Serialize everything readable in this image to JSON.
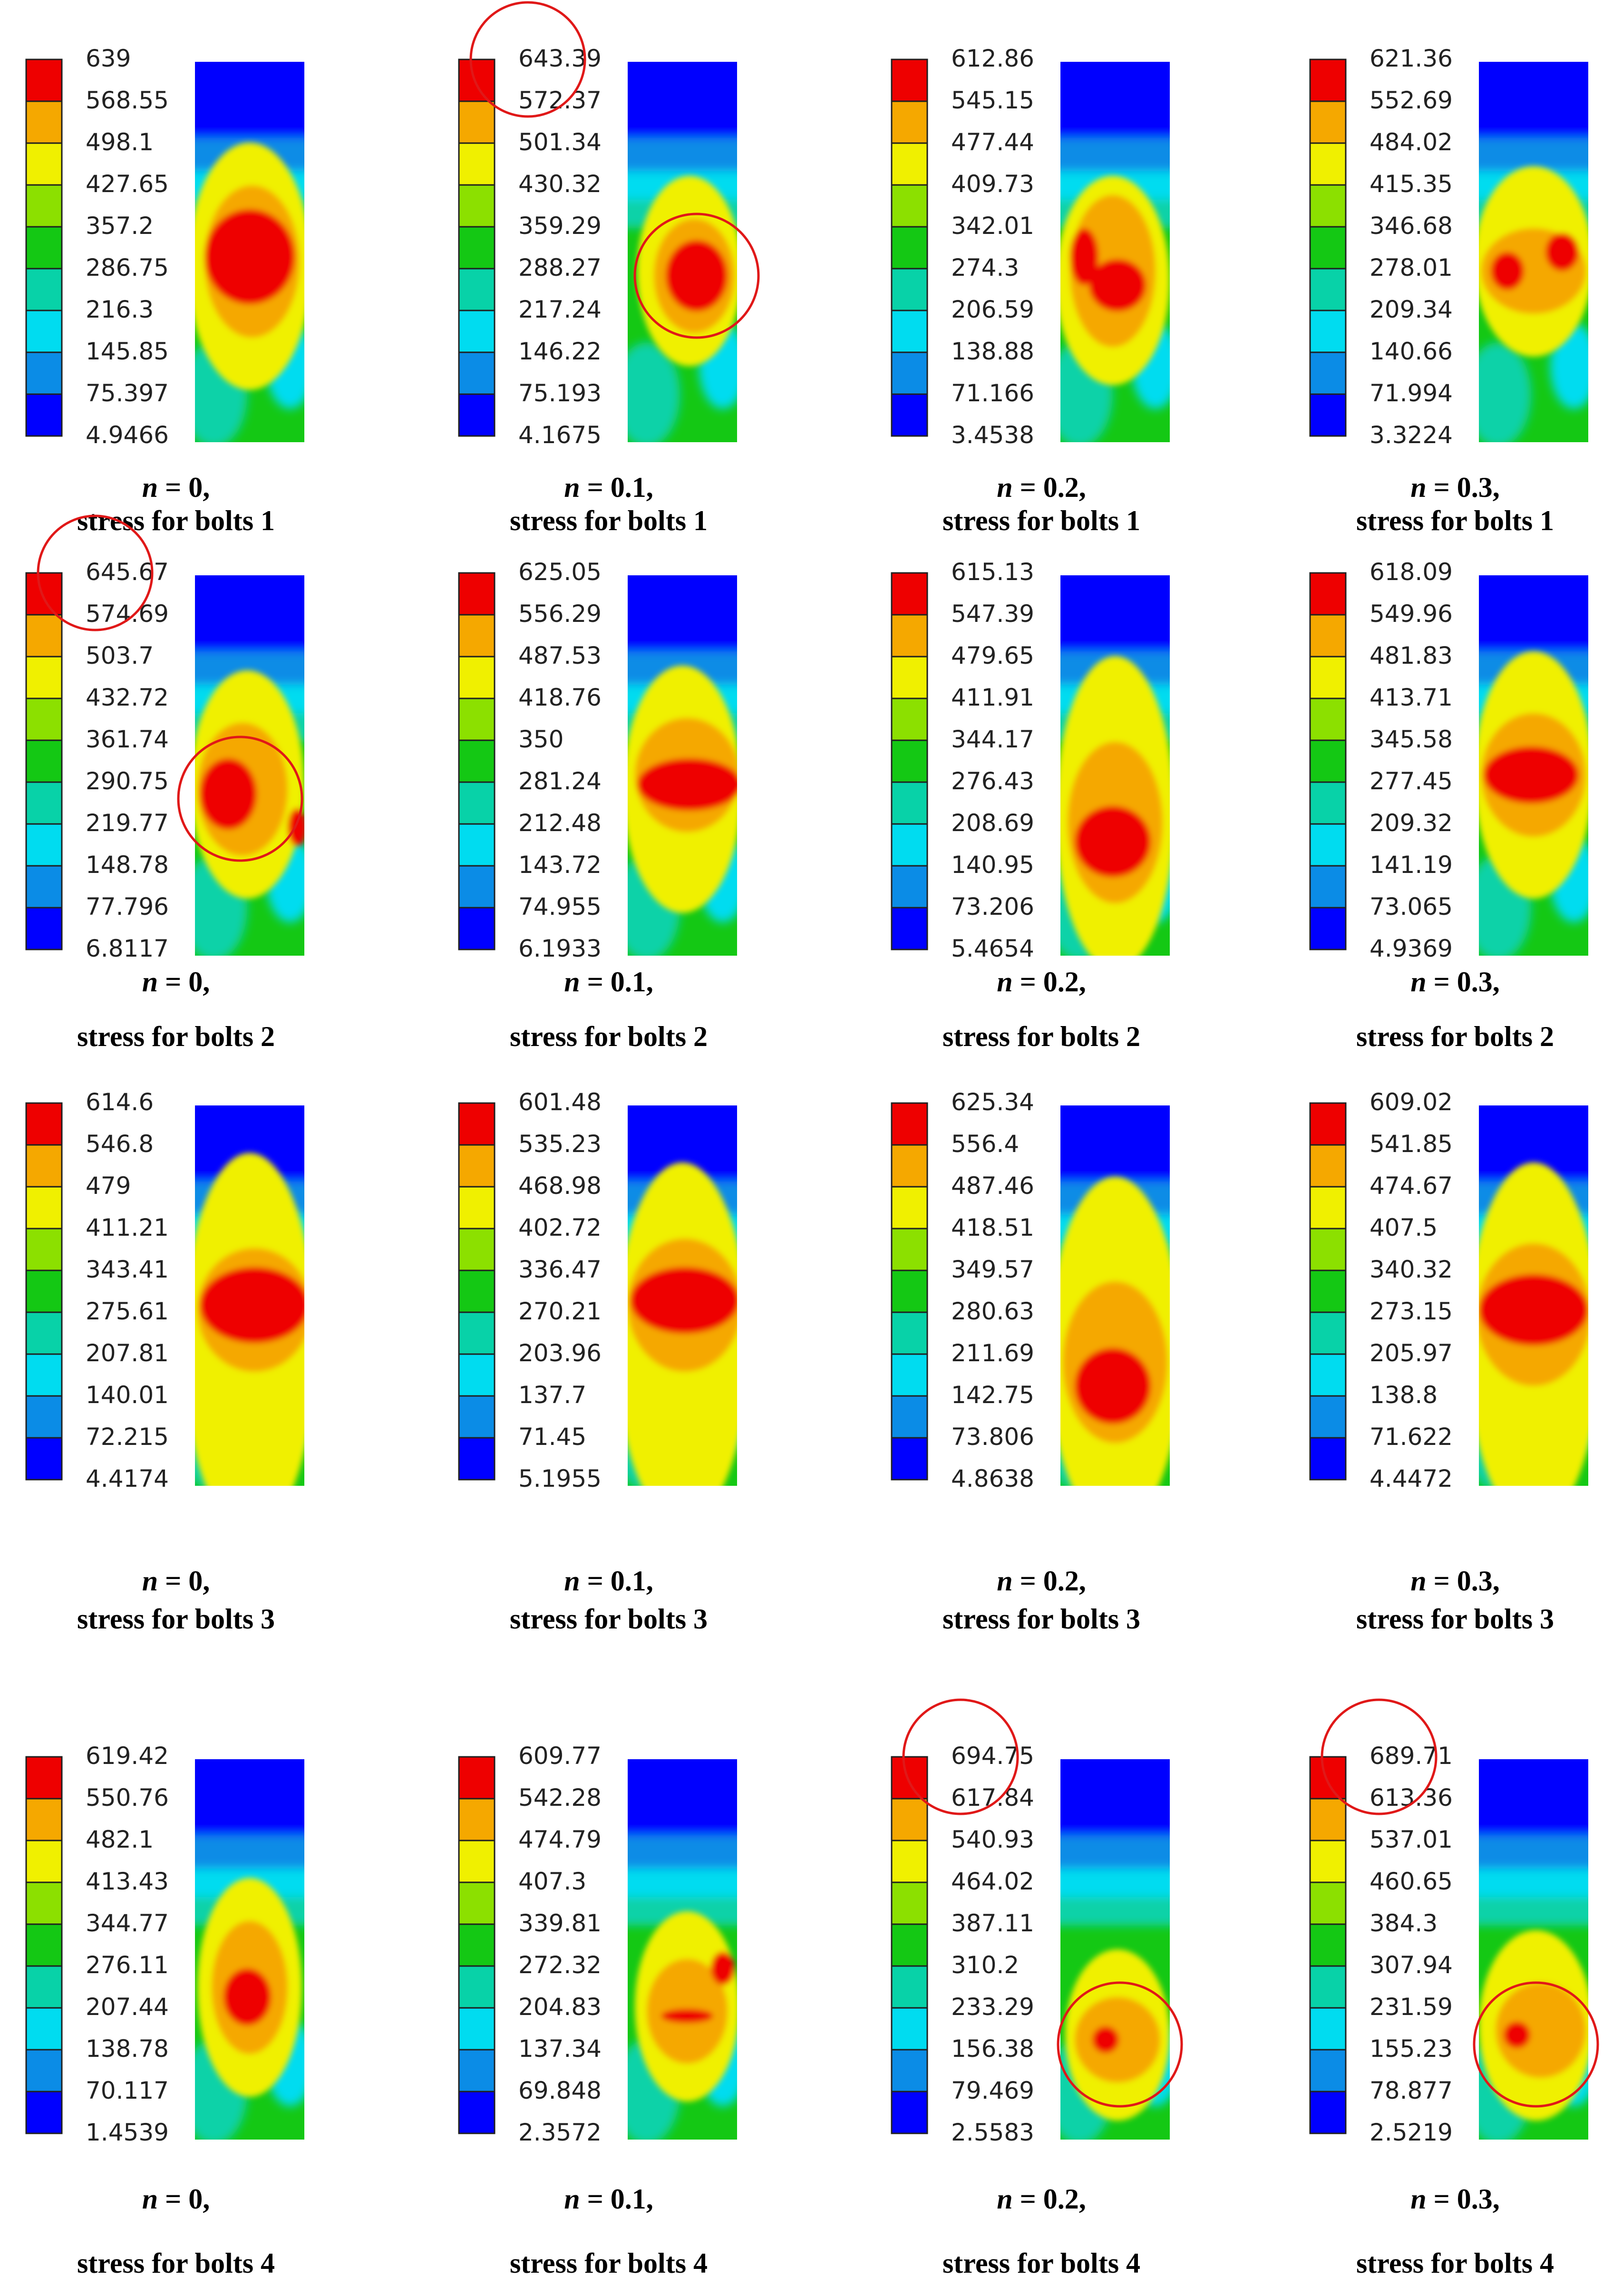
{
  "figure": {
    "colors": {
      "bands": [
        "#0000ff",
        "#0b8ce6",
        "#00dcf0",
        "#08d2a8",
        "#14c814",
        "#8ce000",
        "#f0f000",
        "#f5a800",
        "#ee0000"
      ],
      "highlight": "#e01818"
    },
    "panels": [
      {
        "n": "0",
        "bolt": "1",
        "labels": [
          "639",
          "568.55",
          "498.1",
          "427.65",
          "357.2",
          "286.75",
          "216.3",
          "145.85",
          "75.397",
          "4.9466"
        ],
        "pattern": "a",
        "circle_top": false,
        "circle_body": false
      },
      {
        "n": "0.1",
        "bolt": "1",
        "labels": [
          "643.39",
          "572.37",
          "501.34",
          "430.32",
          "359.29",
          "288.27",
          "217.24",
          "146.22",
          "75.193",
          "4.1675"
        ],
        "pattern": "b",
        "circle_top": true,
        "circle_body": true
      },
      {
        "n": "0.2",
        "bolt": "1",
        "labels": [
          "612.86",
          "545.15",
          "477.44",
          "409.73",
          "342.01",
          "274.3",
          "206.59",
          "138.88",
          "71.166",
          "3.4538"
        ],
        "pattern": "c",
        "circle_top": false,
        "circle_body": false
      },
      {
        "n": "0.3",
        "bolt": "1",
        "labels": [
          "621.36",
          "552.69",
          "484.02",
          "415.35",
          "346.68",
          "278.01",
          "209.34",
          "140.66",
          "71.994",
          "3.3224"
        ],
        "pattern": "d",
        "circle_top": false,
        "circle_body": false
      },
      {
        "n": "0",
        "bolt": "2",
        "labels": [
          "645.67",
          "574.69",
          "503.7",
          "432.72",
          "361.74",
          "290.75",
          "219.77",
          "148.78",
          "77.796",
          "6.8117"
        ],
        "pattern": "e",
        "circle_top": true,
        "circle_body": true
      },
      {
        "n": "0.1",
        "bolt": "2",
        "labels": [
          "625.05",
          "556.29",
          "487.53",
          "418.76",
          "350",
          "281.24",
          "212.48",
          "143.72",
          "74.955",
          "6.1933"
        ],
        "pattern": "f",
        "circle_top": false,
        "circle_body": false
      },
      {
        "n": "0.2",
        "bolt": "2",
        "labels": [
          "615.13",
          "547.39",
          "479.65",
          "411.91",
          "344.17",
          "276.43",
          "208.69",
          "140.95",
          "73.206",
          "5.4654"
        ],
        "pattern": "g",
        "circle_top": false,
        "circle_body": false
      },
      {
        "n": "0.3",
        "bolt": "2",
        "labels": [
          "618.09",
          "549.96",
          "481.83",
          "413.71",
          "345.58",
          "277.45",
          "209.32",
          "141.19",
          "73.065",
          "4.9369"
        ],
        "pattern": "h",
        "circle_top": false,
        "circle_body": false
      },
      {
        "n": "0",
        "bolt": "3",
        "labels": [
          "614.6",
          "546.8",
          "479",
          "411.21",
          "343.41",
          "275.61",
          "207.81",
          "140.01",
          "72.215",
          "4.4174"
        ],
        "pattern": "i",
        "circle_top": false,
        "circle_body": false
      },
      {
        "n": "0.1",
        "bolt": "3",
        "labels": [
          "601.48",
          "535.23",
          "468.98",
          "402.72",
          "336.47",
          "270.21",
          "203.96",
          "137.7",
          "71.45",
          "5.1955"
        ],
        "pattern": "j",
        "circle_top": false,
        "circle_body": false
      },
      {
        "n": "0.2",
        "bolt": "3",
        "labels": [
          "625.34",
          "556.4",
          "487.46",
          "418.51",
          "349.57",
          "280.63",
          "211.69",
          "142.75",
          "73.806",
          "4.8638"
        ],
        "pattern": "k",
        "circle_top": false,
        "circle_body": false
      },
      {
        "n": "0.3",
        "bolt": "3",
        "labels": [
          "609.02",
          "541.85",
          "474.67",
          "407.5",
          "340.32",
          "273.15",
          "205.97",
          "138.8",
          "71.622",
          "4.4472"
        ],
        "pattern": "l",
        "circle_top": false,
        "circle_body": false
      },
      {
        "n": "0",
        "bolt": "4",
        "labels": [
          "619.42",
          "550.76",
          "482.1",
          "413.43",
          "344.77",
          "276.11",
          "207.44",
          "138.78",
          "70.117",
          "1.4539"
        ],
        "pattern": "m",
        "circle_top": false,
        "circle_body": false
      },
      {
        "n": "0.1",
        "bolt": "4",
        "labels": [
          "609.77",
          "542.28",
          "474.79",
          "407.3",
          "339.81",
          "272.32",
          "204.83",
          "137.34",
          "69.848",
          "2.3572"
        ],
        "pattern": "n",
        "circle_top": false,
        "circle_body": false
      },
      {
        "n": "0.2",
        "bolt": "4",
        "labels": [
          "694.75",
          "617.84",
          "540.93",
          "464.02",
          "387.11",
          "310.2",
          "233.29",
          "156.38",
          "79.469",
          "2.5583"
        ],
        "pattern": "o",
        "circle_top": true,
        "circle_body": true
      },
      {
        "n": "0.3",
        "bolt": "4",
        "labels": [
          "689.71",
          "613.36",
          "537.01",
          "460.65",
          "384.3",
          "307.94",
          "231.59",
          "155.23",
          "78.877",
          "2.5219"
        ],
        "pattern": "p",
        "circle_top": true,
        "circle_body": true
      }
    ]
  },
  "captions": {
    "n_symbol": "n",
    "eq": " = ",
    "comma": ",",
    "stress_prefix": "stress for bolts "
  }
}
